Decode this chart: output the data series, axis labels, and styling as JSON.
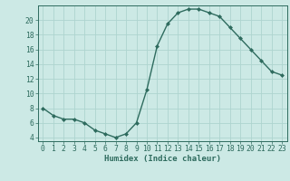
{
  "x": [
    0,
    1,
    2,
    3,
    4,
    5,
    6,
    7,
    8,
    9,
    10,
    11,
    12,
    13,
    14,
    15,
    16,
    17,
    18,
    19,
    20,
    21,
    22,
    23
  ],
  "y": [
    8,
    7,
    6.5,
    6.5,
    6,
    5,
    4.5,
    4,
    4.5,
    6,
    10.5,
    16.5,
    19.5,
    21,
    21.5,
    21.5,
    21,
    20.5,
    19,
    17.5,
    16,
    14.5,
    13,
    12.5
  ],
  "line_color": "#2e6b5e",
  "marker": "D",
  "marker_size": 2.0,
  "bg_color": "#cce9e5",
  "grid_color": "#aed4cf",
  "xlabel": "Humidex (Indice chaleur)",
  "xlim": [
    -0.5,
    23.5
  ],
  "ylim": [
    3.5,
    22
  ],
  "yticks": [
    4,
    6,
    8,
    10,
    12,
    14,
    16,
    18,
    20
  ],
  "xticks": [
    0,
    1,
    2,
    3,
    4,
    5,
    6,
    7,
    8,
    9,
    10,
    11,
    12,
    13,
    14,
    15,
    16,
    17,
    18,
    19,
    20,
    21,
    22,
    23
  ],
  "label_fontsize": 6.5,
  "tick_fontsize": 5.8,
  "line_width": 1.0
}
